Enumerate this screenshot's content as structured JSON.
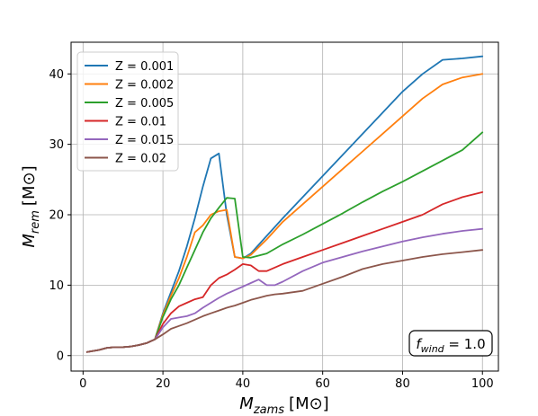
{
  "chart_data": {
    "type": "line",
    "xlabel_main": "M",
    "xlabel_sub": "zams",
    "xlabel_unit": "[M⊙]",
    "ylabel_main": "M",
    "ylabel_sub": "rem",
    "ylabel_unit": "[M⊙]",
    "xlim": [
      -3,
      104
    ],
    "ylim": [
      -2.2,
      44.5
    ],
    "xticks": [
      0,
      20,
      40,
      60,
      80,
      100
    ],
    "yticks": [
      0,
      10,
      20,
      30,
      40
    ],
    "grid": true,
    "legend_position": "upper-left",
    "annotation": {
      "main": "f",
      "sub": "wind",
      "rest": " = 1.0",
      "position": "lower-right"
    },
    "series": [
      {
        "name": "Z = 0.001",
        "color": "#1f77b4",
        "points": [
          [
            1,
            0.5
          ],
          [
            4,
            0.8
          ],
          [
            6,
            1.1
          ],
          [
            8,
            1.2
          ],
          [
            10,
            1.2
          ],
          [
            12,
            1.3
          ],
          [
            14,
            1.5
          ],
          [
            16,
            1.8
          ],
          [
            18,
            2.3
          ],
          [
            20,
            6.0
          ],
          [
            22,
            9.0
          ],
          [
            24,
            12.0
          ],
          [
            26,
            15.5
          ],
          [
            28,
            19.5
          ],
          [
            30,
            24.0
          ],
          [
            32,
            28.0
          ],
          [
            34,
            28.7
          ],
          [
            36,
            20.0
          ],
          [
            38,
            14.0
          ],
          [
            40,
            13.8
          ],
          [
            42,
            14.5
          ],
          [
            46,
            17.0
          ],
          [
            50,
            19.5
          ],
          [
            55,
            22.5
          ],
          [
            60,
            25.5
          ],
          [
            65,
            28.5
          ],
          [
            70,
            31.5
          ],
          [
            75,
            34.5
          ],
          [
            80,
            37.5
          ],
          [
            85,
            40.0
          ],
          [
            90,
            42.0
          ],
          [
            95,
            42.2
          ],
          [
            100,
            42.5
          ]
        ]
      },
      {
        "name": "Z = 0.002",
        "color": "#ff7f0e",
        "points": [
          [
            1,
            0.5
          ],
          [
            4,
            0.8
          ],
          [
            6,
            1.1
          ],
          [
            8,
            1.2
          ],
          [
            10,
            1.2
          ],
          [
            12,
            1.3
          ],
          [
            14,
            1.5
          ],
          [
            16,
            1.8
          ],
          [
            18,
            2.3
          ],
          [
            20,
            5.8
          ],
          [
            22,
            8.5
          ],
          [
            24,
            11.0
          ],
          [
            26,
            14.0
          ],
          [
            28,
            17.5
          ],
          [
            30,
            18.5
          ],
          [
            32,
            20.0
          ],
          [
            34,
            20.5
          ],
          [
            36,
            20.7
          ],
          [
            38,
            14.0
          ],
          [
            40,
            13.8
          ],
          [
            42,
            14.3
          ],
          [
            46,
            16.5
          ],
          [
            50,
            19.0
          ],
          [
            55,
            21.5
          ],
          [
            60,
            24.0
          ],
          [
            65,
            26.5
          ],
          [
            70,
            29.0
          ],
          [
            75,
            31.5
          ],
          [
            80,
            34.0
          ],
          [
            85,
            36.5
          ],
          [
            90,
            38.5
          ],
          [
            95,
            39.5
          ],
          [
            100,
            40.0
          ]
        ]
      },
      {
        "name": "Z = 0.005",
        "color": "#2ca02c",
        "points": [
          [
            1,
            0.5
          ],
          [
            4,
            0.8
          ],
          [
            6,
            1.1
          ],
          [
            8,
            1.2
          ],
          [
            10,
            1.2
          ],
          [
            12,
            1.3
          ],
          [
            14,
            1.5
          ],
          [
            16,
            1.8
          ],
          [
            18,
            2.3
          ],
          [
            20,
            5.5
          ],
          [
            22,
            8.0
          ],
          [
            24,
            10.0
          ],
          [
            26,
            12.5
          ],
          [
            28,
            15.0
          ],
          [
            30,
            17.5
          ],
          [
            32,
            19.5
          ],
          [
            34,
            21.0
          ],
          [
            36,
            22.4
          ],
          [
            38,
            22.3
          ],
          [
            40,
            14.0
          ],
          [
            42,
            13.9
          ],
          [
            46,
            14.5
          ],
          [
            50,
            15.8
          ],
          [
            55,
            17.2
          ],
          [
            60,
            18.7
          ],
          [
            65,
            20.2
          ],
          [
            70,
            21.8
          ],
          [
            75,
            23.3
          ],
          [
            80,
            24.7
          ],
          [
            85,
            26.2
          ],
          [
            90,
            27.7
          ],
          [
            95,
            29.2
          ],
          [
            100,
            31.7
          ]
        ]
      },
      {
        "name": "Z = 0.01",
        "color": "#d62728",
        "points": [
          [
            1,
            0.5
          ],
          [
            4,
            0.8
          ],
          [
            6,
            1.1
          ],
          [
            8,
            1.2
          ],
          [
            10,
            1.2
          ],
          [
            12,
            1.3
          ],
          [
            14,
            1.5
          ],
          [
            16,
            1.8
          ],
          [
            18,
            2.3
          ],
          [
            20,
            4.5
          ],
          [
            22,
            6.0
          ],
          [
            24,
            7.0
          ],
          [
            26,
            7.5
          ],
          [
            28,
            8.0
          ],
          [
            30,
            8.3
          ],
          [
            32,
            10.0
          ],
          [
            34,
            11.0
          ],
          [
            36,
            11.5
          ],
          [
            38,
            12.2
          ],
          [
            40,
            13.0
          ],
          [
            42,
            12.8
          ],
          [
            44,
            12.0
          ],
          [
            46,
            12.0
          ],
          [
            48,
            12.5
          ],
          [
            50,
            13.0
          ],
          [
            55,
            14.0
          ],
          [
            60,
            15.0
          ],
          [
            65,
            16.0
          ],
          [
            70,
            17.0
          ],
          [
            75,
            18.0
          ],
          [
            80,
            19.0
          ],
          [
            85,
            20.0
          ],
          [
            90,
            21.5
          ],
          [
            95,
            22.5
          ],
          [
            100,
            23.2
          ]
        ]
      },
      {
        "name": "Z = 0.015",
        "color": "#9467bd",
        "points": [
          [
            1,
            0.5
          ],
          [
            4,
            0.8
          ],
          [
            6,
            1.1
          ],
          [
            8,
            1.2
          ],
          [
            10,
            1.2
          ],
          [
            12,
            1.3
          ],
          [
            14,
            1.5
          ],
          [
            16,
            1.8
          ],
          [
            18,
            2.3
          ],
          [
            20,
            4.0
          ],
          [
            22,
            5.2
          ],
          [
            24,
            5.4
          ],
          [
            26,
            5.6
          ],
          [
            28,
            6.0
          ],
          [
            30,
            6.8
          ],
          [
            32,
            7.5
          ],
          [
            34,
            8.2
          ],
          [
            36,
            8.8
          ],
          [
            38,
            9.3
          ],
          [
            40,
            9.8
          ],
          [
            42,
            10.3
          ],
          [
            44,
            10.8
          ],
          [
            46,
            10.0
          ],
          [
            48,
            10.0
          ],
          [
            50,
            10.5
          ],
          [
            55,
            12.0
          ],
          [
            60,
            13.2
          ],
          [
            65,
            14.0
          ],
          [
            70,
            14.8
          ],
          [
            75,
            15.5
          ],
          [
            80,
            16.2
          ],
          [
            85,
            16.8
          ],
          [
            90,
            17.3
          ],
          [
            95,
            17.7
          ],
          [
            100,
            18.0
          ]
        ]
      },
      {
        "name": "Z = 0.02",
        "color": "#8c564b",
        "points": [
          [
            1,
            0.5
          ],
          [
            4,
            0.8
          ],
          [
            6,
            1.1
          ],
          [
            8,
            1.2
          ],
          [
            10,
            1.2
          ],
          [
            12,
            1.3
          ],
          [
            14,
            1.5
          ],
          [
            16,
            1.8
          ],
          [
            18,
            2.3
          ],
          [
            20,
            3.0
          ],
          [
            22,
            3.8
          ],
          [
            24,
            4.2
          ],
          [
            26,
            4.6
          ],
          [
            28,
            5.1
          ],
          [
            30,
            5.6
          ],
          [
            32,
            6.0
          ],
          [
            34,
            6.4
          ],
          [
            36,
            6.8
          ],
          [
            38,
            7.1
          ],
          [
            40,
            7.5
          ],
          [
            42,
            7.9
          ],
          [
            44,
            8.2
          ],
          [
            46,
            8.5
          ],
          [
            48,
            8.7
          ],
          [
            50,
            8.8
          ],
          [
            55,
            9.2
          ],
          [
            60,
            10.2
          ],
          [
            65,
            11.2
          ],
          [
            70,
            12.3
          ],
          [
            75,
            13.0
          ],
          [
            80,
            13.5
          ],
          [
            85,
            14.0
          ],
          [
            90,
            14.4
          ],
          [
            95,
            14.7
          ],
          [
            100,
            15.0
          ]
        ]
      }
    ]
  }
}
